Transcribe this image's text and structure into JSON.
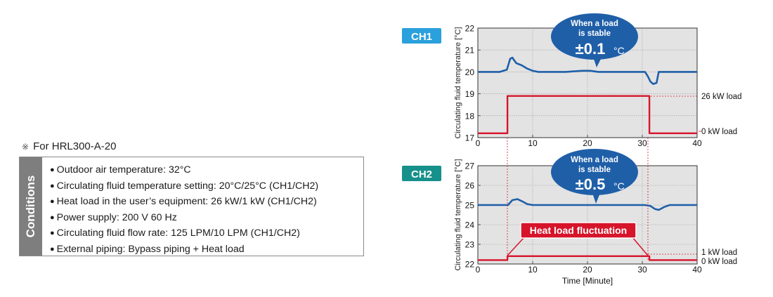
{
  "note": {
    "asterisk": "※",
    "model": "For HRL300-A-20"
  },
  "conditions": {
    "tab_label": "Conditions",
    "items": [
      "Outdoor air temperature: 32°C",
      "Circulating fluid temperature setting: 20°C/25°C (CH1/CH2)",
      "Heat load in the user’s equipment: 26 kW/1 kW (CH1/CH2)",
      "Power supply: 200 V 60 Hz",
      "Circulating fluid flow rate: 125 LPM/10 LPM (CH1/CH2)",
      "External piping: Bypass piping + Heat load"
    ]
  },
  "colors": {
    "ch1_badge": "#2aa0dc",
    "ch2_badge": "#16908a",
    "temperature_line": "#1f5fa8",
    "load_line": "#d6142a",
    "bubble": "#1f5fa8",
    "plot_bg": "#e3e3e3"
  },
  "chart_data": [
    {
      "type": "line",
      "channel": "CH1",
      "ylabel": "Circulating fluid temperature [°C]",
      "xlim": [
        0,
        40
      ],
      "ylim": [
        17,
        22
      ],
      "xticks": [
        0,
        10,
        20,
        30,
        40
      ],
      "yticks": [
        17,
        18,
        19,
        20,
        21,
        22
      ],
      "grid": true,
      "series": [
        {
          "values": [
            [
              0,
              20.0
            ],
            [
              2,
              20.0
            ],
            [
              4,
              20.0
            ],
            [
              5.3,
              20.1
            ],
            [
              5.9,
              20.6
            ],
            [
              6.3,
              20.65
            ],
            [
              7,
              20.4
            ],
            [
              8,
              20.3
            ],
            [
              9,
              20.15
            ],
            [
              10,
              20.05
            ],
            [
              11,
              20.0
            ],
            [
              14,
              20.0
            ],
            [
              16,
              20.0
            ],
            [
              19,
              20.05
            ],
            [
              20.5,
              20.05
            ],
            [
              22,
              20.0
            ],
            [
              25,
              20.0
            ],
            [
              28,
              20.0
            ],
            [
              30.5,
              20.0
            ],
            [
              31,
              19.8
            ],
            [
              31.5,
              19.55
            ],
            [
              32,
              19.45
            ],
            [
              32.6,
              19.5
            ],
            [
              33,
              20.0
            ],
            [
              34,
              20.0
            ],
            [
              36,
              20.0
            ],
            [
              40,
              20.0
            ]
          ]
        },
        {
          "values": [
            [
              0,
              17.2
            ],
            [
              5.4,
              17.2
            ],
            [
              5.4,
              18.9
            ],
            [
              31.3,
              18.9
            ],
            [
              31.3,
              17.2
            ],
            [
              40,
              17.2
            ]
          ]
        }
      ],
      "annotations": {
        "bubble_line1": "When a load",
        "bubble_line2": "is stable",
        "bubble_value": "±0.1",
        "bubble_unit": "°C",
        "load_high": "26 kW load",
        "load_low": "0 kW load"
      }
    },
    {
      "type": "line",
      "channel": "CH2",
      "xlabel": "Time [Minute]",
      "ylabel": "Circulating fluid temperature [°C]",
      "xlim": [
        0,
        40
      ],
      "ylim": [
        22,
        27
      ],
      "xticks": [
        0,
        10,
        20,
        30,
        40
      ],
      "yticks": [
        22,
        23,
        24,
        25,
        26,
        27
      ],
      "grid": true,
      "series": [
        {
          "values": [
            [
              0,
              25.0
            ],
            [
              3,
              25.0
            ],
            [
              5.5,
              25.0
            ],
            [
              6.3,
              25.25
            ],
            [
              7.2,
              25.3
            ],
            [
              8,
              25.2
            ],
            [
              9,
              25.05
            ],
            [
              10,
              25.0
            ],
            [
              14,
              25.0
            ],
            [
              18,
              25.0
            ],
            [
              22,
              25.0
            ],
            [
              26,
              25.0
            ],
            [
              30.5,
              25.0
            ],
            [
              31.5,
              24.95
            ],
            [
              32.3,
              24.8
            ],
            [
              33,
              24.75
            ],
            [
              34,
              24.9
            ],
            [
              35,
              25.0
            ],
            [
              40,
              25.0
            ]
          ]
        },
        {
          "values": [
            [
              0,
              22.2
            ],
            [
              5.4,
              22.2
            ],
            [
              5.4,
              22.4
            ],
            [
              31.3,
              22.4
            ],
            [
              31.3,
              22.2
            ],
            [
              40,
              22.2
            ]
          ]
        }
      ],
      "annotations": {
        "bubble_line1": "When a load",
        "bubble_line2": "is stable",
        "bubble_value": "±0.5",
        "bubble_unit": "°C",
        "load_high": "1 kW load",
        "load_low": "0 kW load",
        "banner": "Heat load fluctuation"
      }
    }
  ]
}
